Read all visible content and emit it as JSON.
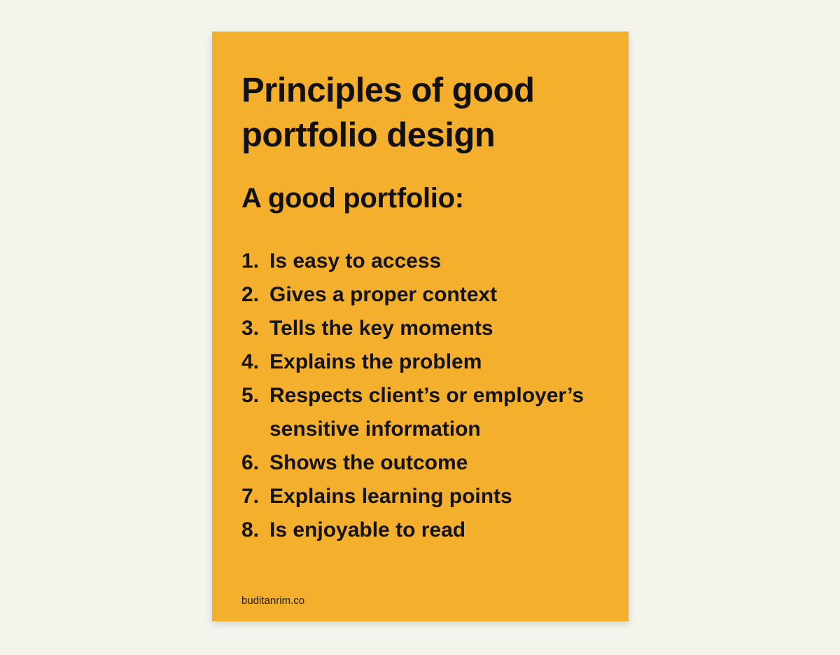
{
  "card": {
    "title": "Principles of good portfolio design",
    "subtitle": "A good portfolio:",
    "items": [
      {
        "number": "1.",
        "text": "Is easy to access"
      },
      {
        "number": "2.",
        "text": "Gives a proper context"
      },
      {
        "number": "3.",
        "text": "Tells the key moments"
      },
      {
        "number": "4.",
        "text": "Explains the problem"
      },
      {
        "number": "5.",
        "text": "Respects client’s or employer’s sensitive information"
      },
      {
        "number": "6.",
        "text": "Shows the outcome"
      },
      {
        "number": "7.",
        "text": "Explains learning points"
      },
      {
        "number": "8.",
        "text": "Is enjoyable to read"
      }
    ],
    "footer": "buditanrim.co"
  },
  "colors": {
    "background": "#f4f3ec",
    "card": "#f4b02d",
    "text": "#111111"
  }
}
